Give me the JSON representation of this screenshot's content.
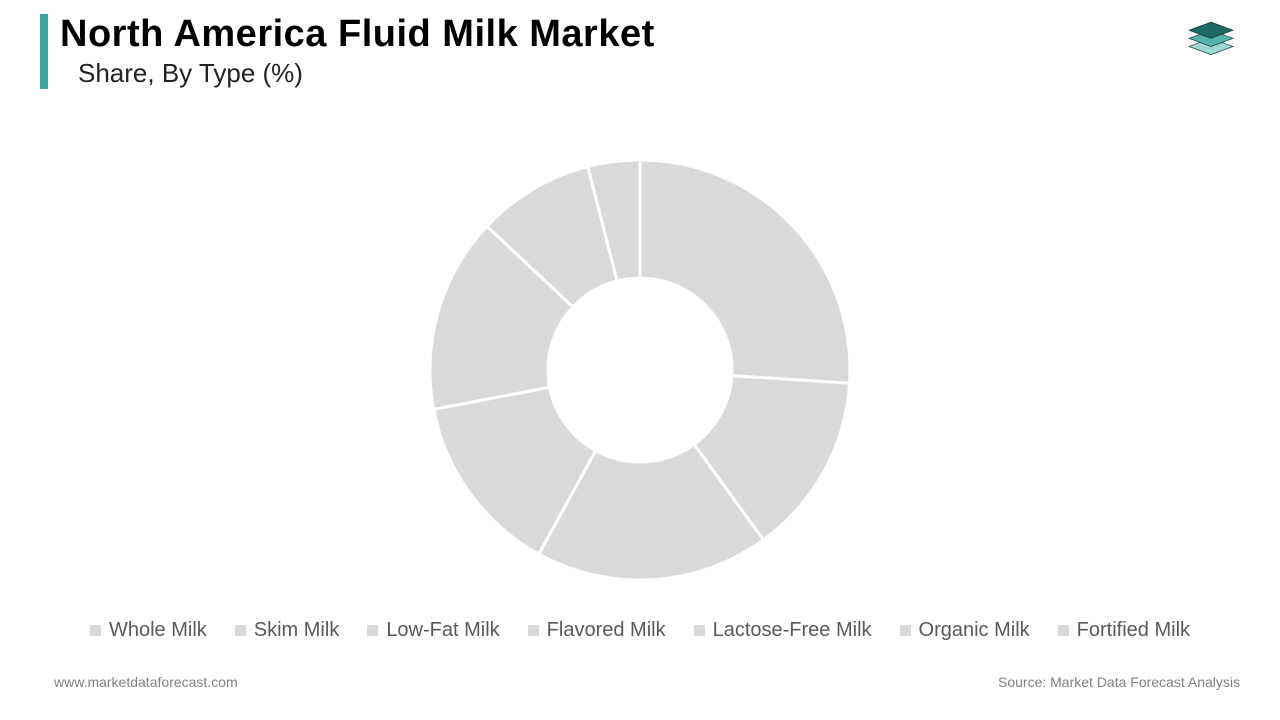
{
  "header": {
    "title": "North America Fluid Milk Market",
    "subtitle": "Share, By Type (%)",
    "accent_color": "#39a79f",
    "title_color": "#000000",
    "subtitle_color": "#232323",
    "title_fontsize": 38,
    "subtitle_fontsize": 26
  },
  "logo": {
    "layer_top_color": "#1d6a62",
    "layer_mid_color": "#56b3ac",
    "layer_bottom_color": "#9ed7d2",
    "stroke_color": "#0f3f3a"
  },
  "chart": {
    "type": "donut",
    "outer_radius": 210,
    "inner_radius": 92,
    "center_color": "#ffffff",
    "gap_stroke": "#ffffff",
    "gap_width": 3,
    "background_color": "#ffffff",
    "segments": [
      {
        "label": "Whole Milk",
        "value": 26,
        "color": "#d9d9d9"
      },
      {
        "label": "Skim Milk",
        "value": 14,
        "color": "#d9d9d9"
      },
      {
        "label": "Low-Fat Milk",
        "value": 18,
        "color": "#d9d9d9"
      },
      {
        "label": "Flavored Milk",
        "value": 14,
        "color": "#d9d9d9"
      },
      {
        "label": "Lactose-Free Milk",
        "value": 15,
        "color": "#d9d9d9"
      },
      {
        "label": "Organic Milk",
        "value": 9,
        "color": "#d9d9d9"
      },
      {
        "label": "Fortified Milk",
        "value": 4,
        "color": "#d9d9d9"
      }
    ]
  },
  "legend": {
    "swatch_color": "#d9d9d9",
    "text_color": "#595959",
    "fontsize": 20,
    "items": [
      "Whole Milk",
      "Skim Milk",
      "Low-Fat Milk",
      "Flavored Milk",
      "Lactose-Free Milk",
      "Organic Milk",
      "Fortified Milk"
    ]
  },
  "footer": {
    "left": "www.marketdataforecast.com",
    "right": "Source: Market Data Forecast Analysis",
    "color": "#808080",
    "fontsize": 14
  }
}
